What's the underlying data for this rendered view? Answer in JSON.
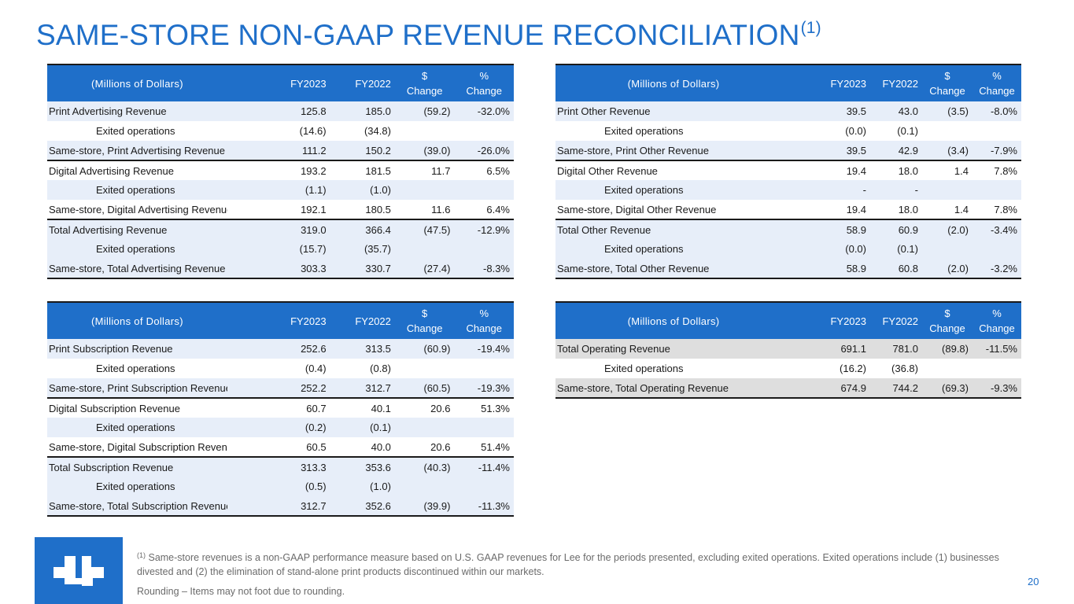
{
  "page": {
    "title": "SAME-STORE NON-GAAP REVENUE RECONCILIATION",
    "title_note": "(1)",
    "page_number": "20"
  },
  "headers": {
    "label": "(Millions of Dollars)",
    "fy2023": "FY2023",
    "fy2022": "FY2022",
    "dollar_change_1": "$",
    "dollar_change_2": "Change",
    "pct_change_1": "%",
    "pct_change_2": "Change"
  },
  "advertising_table": {
    "rows": [
      {
        "label": "Print Advertising Revenue",
        "fy2023": "125.8",
        "fy2022": "185.0",
        "dollar_change": "(59.2)",
        "pct_change": "-32.0%"
      },
      {
        "label": "Exited operations",
        "fy2023": "(14.6)",
        "fy2022": "(34.8)",
        "dollar_change": "",
        "pct_change": ""
      },
      {
        "label": "Same-store, Print Advertising Revenue",
        "fy2023": "111.2",
        "fy2022": "150.2",
        "dollar_change": "(39.0)",
        "pct_change": "-26.0%"
      },
      {
        "label": "Digital Advertising Revenue",
        "fy2023": "193.2",
        "fy2022": "181.5",
        "dollar_change": "11.7",
        "pct_change": "6.5%"
      },
      {
        "label": "Exited operations",
        "fy2023": "(1.1)",
        "fy2022": "(1.0)",
        "dollar_change": "",
        "pct_change": ""
      },
      {
        "label": "Same-store, Digital Advertising Revenue",
        "fy2023": "192.1",
        "fy2022": "180.5",
        "dollar_change": "11.6",
        "pct_change": "6.4%"
      },
      {
        "label": "Total Advertising Revenue",
        "fy2023": "319.0",
        "fy2022": "366.4",
        "dollar_change": "(47.5)",
        "pct_change": "-12.9%"
      },
      {
        "label": "Exited operations",
        "fy2023": "(15.7)",
        "fy2022": "(35.7)",
        "dollar_change": "",
        "pct_change": ""
      },
      {
        "label": "Same-store, Total Advertising Revenue",
        "fy2023": "303.3",
        "fy2022": "330.7",
        "dollar_change": "(27.4)",
        "pct_change": "-8.3%"
      }
    ]
  },
  "other_table": {
    "rows": [
      {
        "label": "Print Other Revenue",
        "fy2023": "39.5",
        "fy2022": "43.0",
        "dollar_change": "(3.5)",
        "pct_change": "-8.0%"
      },
      {
        "label": "Exited operations",
        "fy2023": "(0.0)",
        "fy2022": "(0.1)",
        "dollar_change": "",
        "pct_change": ""
      },
      {
        "label": "Same-store, Print Other Revenue",
        "fy2023": "39.5",
        "fy2022": "42.9",
        "dollar_change": "(3.4)",
        "pct_change": "-7.9%"
      },
      {
        "label": "Digital Other Revenue",
        "fy2023": "19.4",
        "fy2022": "18.0",
        "dollar_change": "1.4",
        "pct_change": "7.8%"
      },
      {
        "label": "Exited operations",
        "fy2023": "-",
        "fy2022": "-",
        "dollar_change": "",
        "pct_change": ""
      },
      {
        "label": "Same-store, Digital Other Revenue",
        "fy2023": "19.4",
        "fy2022": "18.0",
        "dollar_change": "1.4",
        "pct_change": "7.8%"
      },
      {
        "label": "Total Other Revenue",
        "fy2023": "58.9",
        "fy2022": "60.9",
        "dollar_change": "(2.0)",
        "pct_change": "-3.4%"
      },
      {
        "label": "Exited operations",
        "fy2023": "(0.0)",
        "fy2022": "(0.1)",
        "dollar_change": "",
        "pct_change": ""
      },
      {
        "label": "Same-store, Total Other Revenue",
        "fy2023": "58.9",
        "fy2022": "60.8",
        "dollar_change": "(2.0)",
        "pct_change": "-3.2%"
      }
    ]
  },
  "subscription_table": {
    "rows": [
      {
        "label": "Print Subscription Revenue",
        "fy2023": "252.6",
        "fy2022": "313.5",
        "dollar_change": "(60.9)",
        "pct_change": "-19.4%"
      },
      {
        "label": "Exited operations",
        "fy2023": "(0.4)",
        "fy2022": "(0.8)",
        "dollar_change": "",
        "pct_change": ""
      },
      {
        "label": "Same-store, Print Subscription Revenue",
        "fy2023": "252.2",
        "fy2022": "312.7",
        "dollar_change": "(60.5)",
        "pct_change": "-19.3%"
      },
      {
        "label": "Digital Subscription Revenue",
        "fy2023": "60.7",
        "fy2022": "40.1",
        "dollar_change": "20.6",
        "pct_change": "51.3%"
      },
      {
        "label": "Exited operations",
        "fy2023": "(0.2)",
        "fy2022": "(0.1)",
        "dollar_change": "",
        "pct_change": ""
      },
      {
        "label": "Same-store, Digital Subscription Revenue",
        "fy2023": "60.5",
        "fy2022": "40.0",
        "dollar_change": "20.6",
        "pct_change": "51.4%"
      },
      {
        "label": "Total Subscription Revenue",
        "fy2023": "313.3",
        "fy2022": "353.6",
        "dollar_change": "(40.3)",
        "pct_change": "-11.4%"
      },
      {
        "label": "Exited operations",
        "fy2023": "(0.5)",
        "fy2022": "(1.0)",
        "dollar_change": "",
        "pct_change": ""
      },
      {
        "label": "Same-store, Total Subscription Revenue",
        "fy2023": "312.7",
        "fy2022": "352.6",
        "dollar_change": "(39.9)",
        "pct_change": "-11.3%"
      }
    ]
  },
  "operating_table": {
    "rows": [
      {
        "label": "Total Operating Revenue",
        "fy2023": "691.1",
        "fy2022": "781.0",
        "dollar_change": "(89.8)",
        "pct_change": "-11.5%"
      },
      {
        "label": "Exited operations",
        "fy2023": "(16.2)",
        "fy2022": "(36.8)",
        "dollar_change": "",
        "pct_change": ""
      },
      {
        "label": "Same-store, Total Operating Revenue",
        "fy2023": "674.9",
        "fy2022": "744.2",
        "dollar_change": "(69.3)",
        "pct_change": "-9.3%"
      }
    ]
  },
  "footer": {
    "note_marker": "(1)",
    "note_text": "Same-store revenues is a non-GAAP performance measure based on U.S. GAAP revenues for Lee for the periods presented, excluding exited operations. Exited operations include (1) businesses divested and (2) the elimination of stand-alone print products discontinued within our markets.",
    "rounding": "Rounding – Items may not foot due to rounding."
  },
  "colors": {
    "accent": "#1f6fc9",
    "row_highlight": "#e7eef9",
    "row_gray": "#dedede"
  },
  "icons": {
    "logo": "lee-logo-icon"
  }
}
